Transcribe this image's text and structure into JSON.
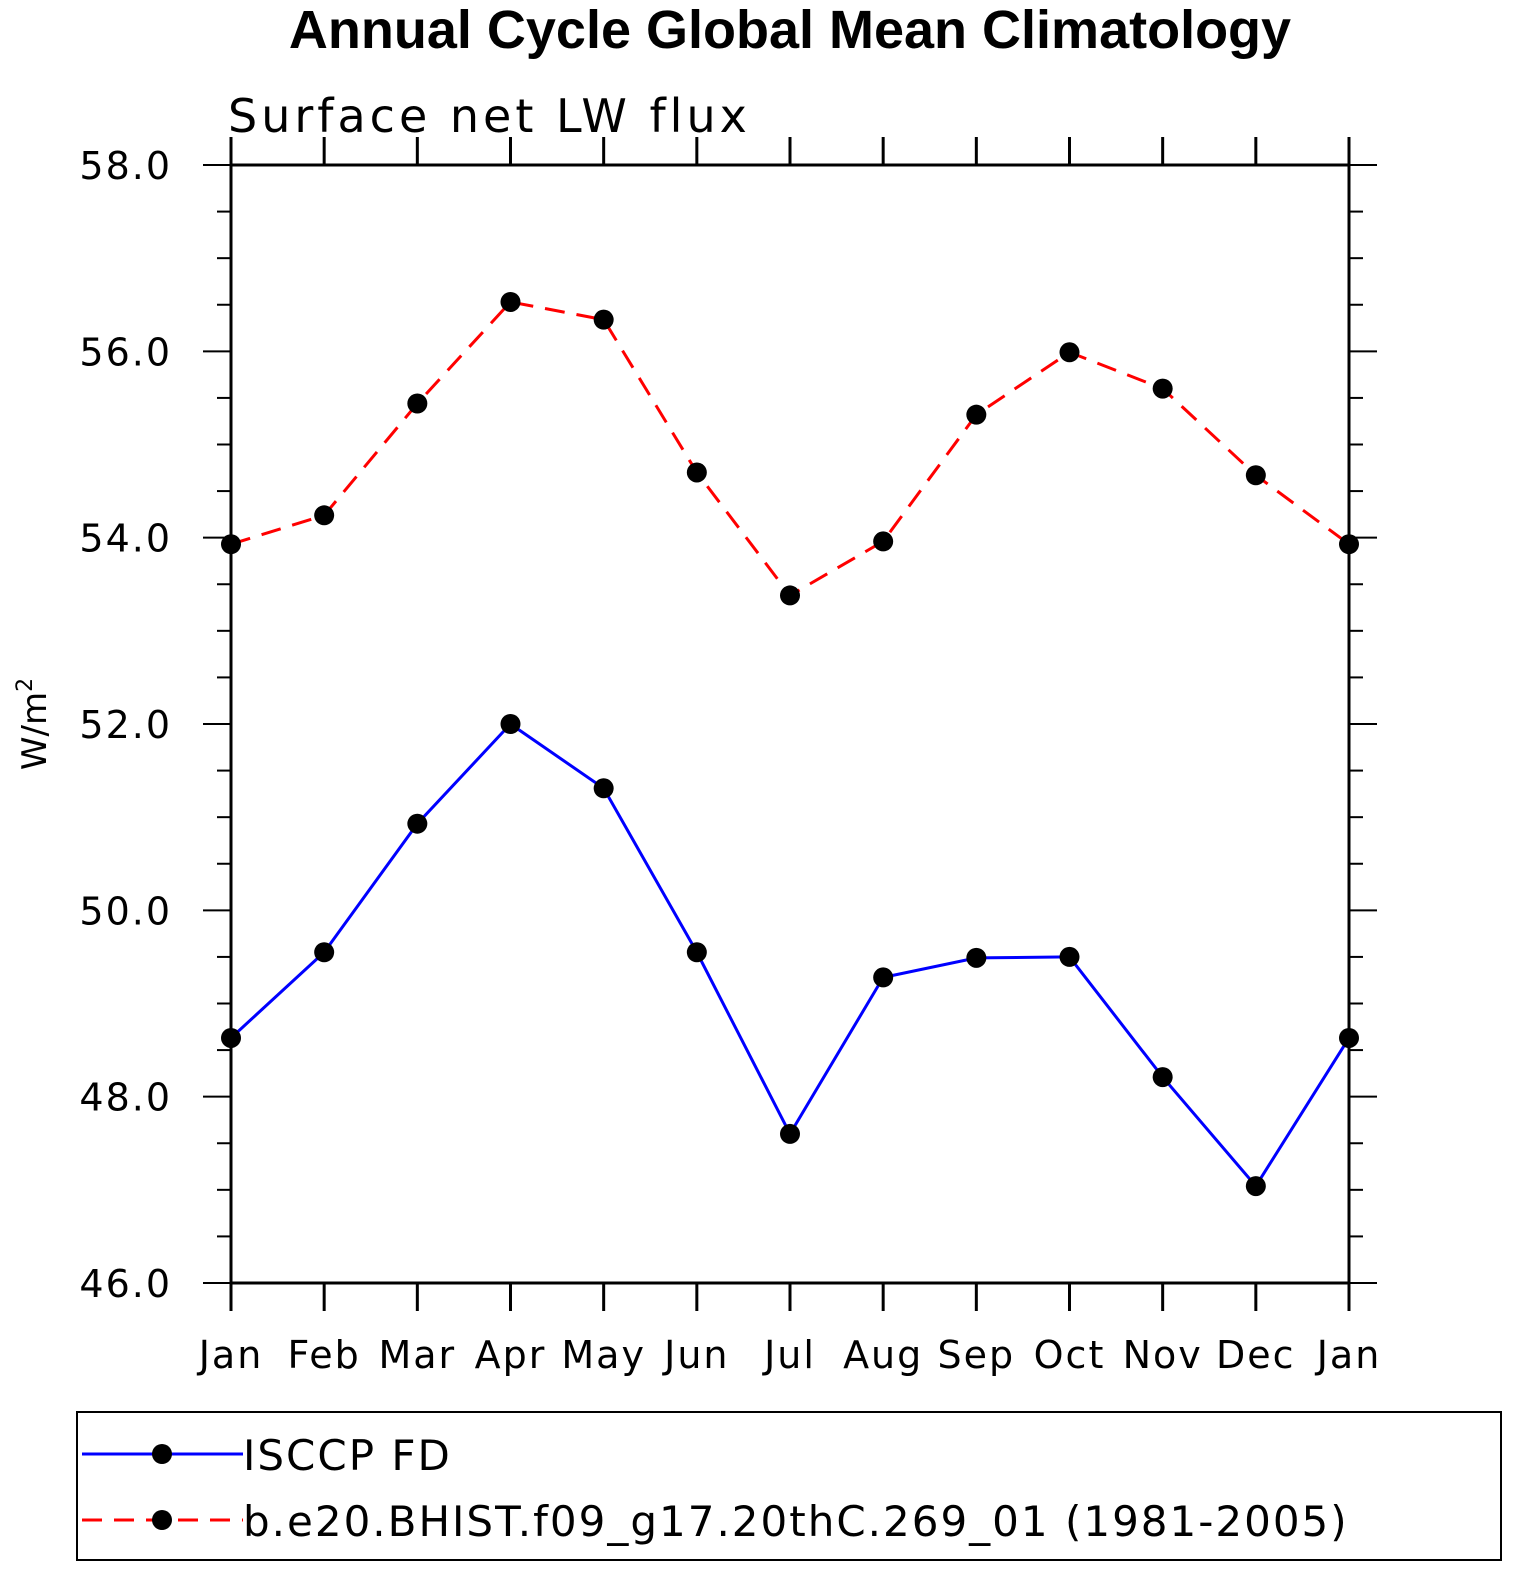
{
  "chart_data": {
    "type": "line",
    "title": "Annual Cycle Global Mean Climatology",
    "subtitle": "Surface net LW flux",
    "xlabel": "",
    "ylabel": "W/m",
    "ylabel_superscript": "2",
    "ylim": [
      46.0,
      58.0
    ],
    "yticks": [
      "46.0",
      "48.0",
      "50.0",
      "52.0",
      "54.0",
      "56.0",
      "58.0"
    ],
    "categories": [
      "Jan",
      "Feb",
      "Mar",
      "Apr",
      "May",
      "Jun",
      "Jul",
      "Aug",
      "Sep",
      "Oct",
      "Nov",
      "Dec",
      "Jan"
    ],
    "series": [
      {
        "name": "ISCCP FD",
        "color": "#0000ff",
        "dash": "solid",
        "values": [
          48.63,
          49.55,
          50.93,
          52.0,
          51.31,
          49.55,
          47.6,
          49.28,
          49.49,
          49.5,
          48.21,
          47.04,
          48.63
        ]
      },
      {
        "name": "b.e20.BHIST.f09_g17.20thC.269_01 (1981-2005)",
        "color": "#ff0000",
        "dash": "dashed",
        "values": [
          53.93,
          54.24,
          55.44,
          56.53,
          56.34,
          54.7,
          53.38,
          53.96,
          55.32,
          55.99,
          55.6,
          54.67,
          53.93
        ]
      }
    ],
    "legend_position": "bottom",
    "marker_color": "#000000"
  }
}
